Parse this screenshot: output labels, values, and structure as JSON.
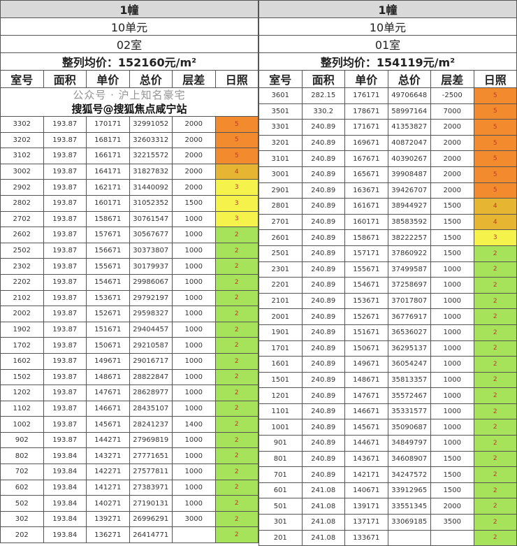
{
  "columns": [
    "室号",
    "面积",
    "单价",
    "总价",
    "层差",
    "日照"
  ],
  "sun_colors": {
    "5": "#f28a2e",
    "4": "#e6b531",
    "3": "#f6f24c",
    "2": "#a6e25a"
  },
  "left": {
    "building": "1幢",
    "unit": "10单元",
    "room": "02室",
    "avg_price": "整列均价：152160元/m²",
    "blank_rows": 2,
    "rows": [
      [
        "3302",
        "193.87",
        "170171",
        "32991052",
        "2000",
        "5"
      ],
      [
        "3202",
        "193.87",
        "168171",
        "32603312",
        "2000",
        "5"
      ],
      [
        "3102",
        "193.87",
        "166171",
        "32215572",
        "2000",
        "5"
      ],
      [
        "3002",
        "193.87",
        "164171",
        "31827832",
        "2000",
        "4"
      ],
      [
        "2902",
        "193.87",
        "162171",
        "31440092",
        "2000",
        "3"
      ],
      [
        "2802",
        "193.87",
        "160171",
        "31052352",
        "1500",
        "3"
      ],
      [
        "2702",
        "193.87",
        "158671",
        "30761547",
        "1000",
        "3"
      ],
      [
        "2602",
        "193.87",
        "157671",
        "30567677",
        "1000",
        "2"
      ],
      [
        "2502",
        "193.87",
        "156671",
        "30373807",
        "1000",
        "2"
      ],
      [
        "2302",
        "193.87",
        "155671",
        "30179937",
        "1000",
        "2"
      ],
      [
        "2202",
        "193.87",
        "154671",
        "29986067",
        "1000",
        "2"
      ],
      [
        "2102",
        "193.87",
        "153671",
        "29792197",
        "1000",
        "2"
      ],
      [
        "2002",
        "193.87",
        "152671",
        "29598327",
        "1000",
        "2"
      ],
      [
        "1902",
        "193.87",
        "151671",
        "29404457",
        "1000",
        "2"
      ],
      [
        "1702",
        "193.87",
        "150671",
        "29210587",
        "1000",
        "2"
      ],
      [
        "1602",
        "193.87",
        "149671",
        "29016717",
        "1000",
        "2"
      ],
      [
        "1502",
        "193.87",
        "148671",
        "28822847",
        "1000",
        "2"
      ],
      [
        "1202",
        "193.87",
        "147671",
        "28628977",
        "1000",
        "2"
      ],
      [
        "1102",
        "193.87",
        "146671",
        "28435107",
        "1000",
        "2"
      ],
      [
        "1002",
        "193.87",
        "145671",
        "28241237",
        "1400",
        "2"
      ],
      [
        "902",
        "193.87",
        "144271",
        "27969819",
        "1000",
        "2"
      ],
      [
        "802",
        "193.84",
        "143271",
        "27771651",
        "1000",
        "2"
      ],
      [
        "702",
        "193.84",
        "142271",
        "27577811",
        "1000",
        "2"
      ],
      [
        "602",
        "193.84",
        "141271",
        "27383971",
        "1000",
        "2"
      ],
      [
        "502",
        "193.84",
        "140271",
        "27190131",
        "1000",
        "2"
      ],
      [
        "302",
        "193.84",
        "139271",
        "26996291",
        "3000",
        "2"
      ],
      [
        "202",
        "193.84",
        "136271",
        "26414771",
        "",
        "2"
      ]
    ]
  },
  "right": {
    "building": "1幢",
    "unit": "10单元",
    "room": "01室",
    "avg_price": "整列均价：154119元/m²",
    "rows": [
      [
        "3601",
        "282.15",
        "176171",
        "49706648",
        "-2500",
        "5"
      ],
      [
        "3501",
        "330.2",
        "178671",
        "58997164",
        "7000",
        "5"
      ],
      [
        "3301",
        "240.89",
        "171671",
        "41353827",
        "2000",
        "5"
      ],
      [
        "3201",
        "240.89",
        "169671",
        "40872047",
        "2000",
        "5"
      ],
      [
        "3101",
        "240.89",
        "167671",
        "40390267",
        "2000",
        "5"
      ],
      [
        "3001",
        "240.89",
        "165671",
        "39908487",
        "2000",
        "5"
      ],
      [
        "2901",
        "240.89",
        "163671",
        "39426707",
        "2000",
        "5"
      ],
      [
        "2801",
        "240.89",
        "161671",
        "38944927",
        "1500",
        "4"
      ],
      [
        "2701",
        "240.89",
        "160171",
        "38583592",
        "1500",
        "4"
      ],
      [
        "2601",
        "240.89",
        "158671",
        "38222257",
        "1500",
        "3"
      ],
      [
        "2501",
        "240.89",
        "157171",
        "37860922",
        "1500",
        "2"
      ],
      [
        "2301",
        "240.89",
        "155671",
        "37499587",
        "1000",
        "2"
      ],
      [
        "2201",
        "240.89",
        "154671",
        "37258697",
        "1000",
        "2"
      ],
      [
        "2101",
        "240.89",
        "153671",
        "37017807",
        "1000",
        "2"
      ],
      [
        "2001",
        "240.89",
        "152671",
        "36776917",
        "1000",
        "2"
      ],
      [
        "1901",
        "240.89",
        "151671",
        "36536027",
        "1000",
        "2"
      ],
      [
        "1701",
        "240.89",
        "150671",
        "36295137",
        "1000",
        "2"
      ],
      [
        "1601",
        "240.89",
        "149671",
        "36054247",
        "1000",
        "2"
      ],
      [
        "1501",
        "240.89",
        "148671",
        "35813357",
        "1000",
        "2"
      ],
      [
        "1201",
        "240.89",
        "147671",
        "35572467",
        "1000",
        "2"
      ],
      [
        "1101",
        "240.89",
        "146671",
        "35331577",
        "1000",
        "2"
      ],
      [
        "1001",
        "240.89",
        "145671",
        "35090687",
        "1000",
        "2"
      ],
      [
        "901",
        "240.89",
        "144671",
        "34849797",
        "1000",
        "2"
      ],
      [
        "801",
        "240.89",
        "143671",
        "34608907",
        "1500",
        "2"
      ],
      [
        "701",
        "240.89",
        "142171",
        "34247572",
        "1500",
        "2"
      ],
      [
        "601",
        "241.08",
        "140671",
        "33912965",
        "1500",
        "2"
      ],
      [
        "501",
        "241.08",
        "139171",
        "33551345",
        "2000",
        "2"
      ],
      [
        "301",
        "241.08",
        "137171",
        "33069185",
        "3500",
        "2"
      ],
      [
        "201",
        "241.08",
        "133671",
        "",
        "",
        "2"
      ]
    ]
  },
  "watermarks": [
    "公众号 · 沪上知名豪宅",
    "搜狐号@搜狐焦点咸宁站"
  ]
}
